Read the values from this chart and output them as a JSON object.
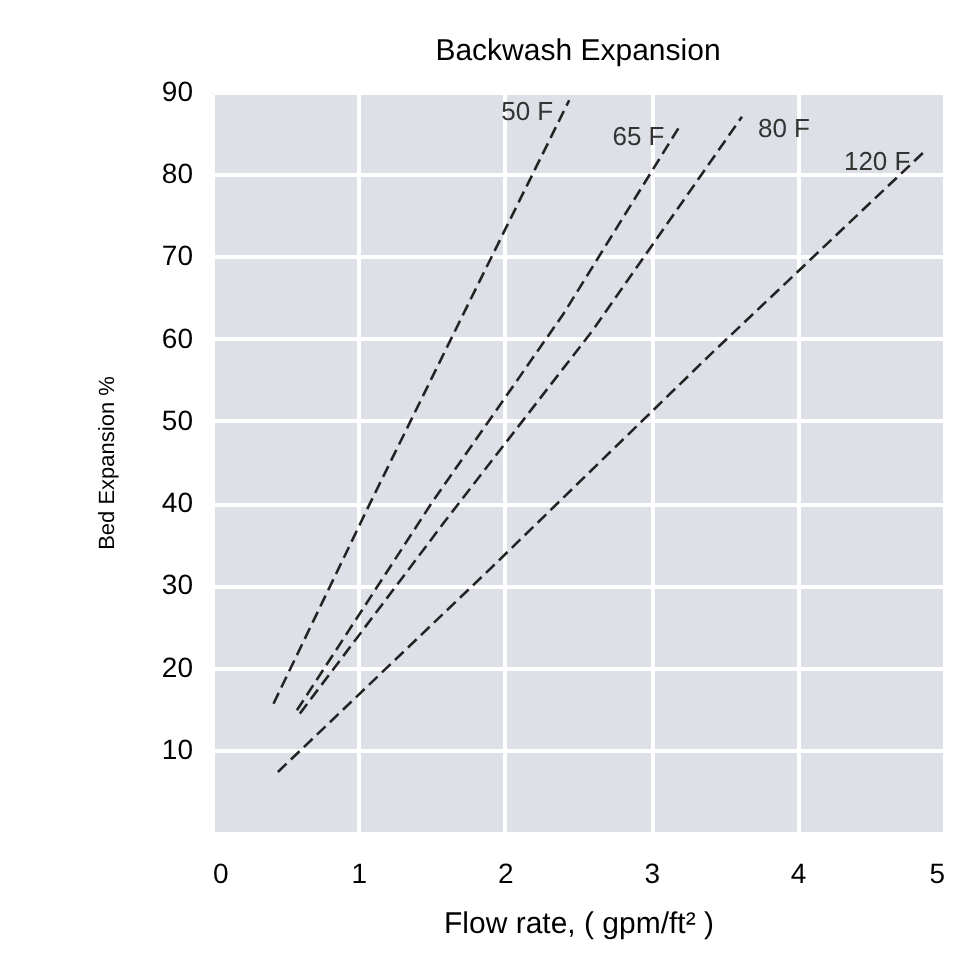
{
  "chart_data": {
    "type": "line",
    "title": "Backwash Expansion",
    "xlabel": "Flow rate, ( gpm/ft² )",
    "ylabel": "Bed Expansion %",
    "xlim": [
      0,
      5
    ],
    "xticks": [
      {
        "value": 0,
        "label": "0"
      },
      {
        "value": 1,
        "label": "1"
      },
      {
        "value": 2,
        "label": "2"
      },
      {
        "value": 3,
        "label": "3"
      },
      {
        "value": 4,
        "label": "4"
      },
      {
        "value": 5,
        "label": "5"
      }
    ],
    "ylim": [
      0,
      90
    ],
    "yticks": [
      10,
      20,
      30,
      40,
      50,
      60,
      70,
      80,
      90
    ],
    "grid": true,
    "legend": false,
    "line_style": "dashed",
    "marker": "none",
    "series": [
      {
        "name": "50 F",
        "color": "#222222",
        "x": [
          0.42,
          1.08,
          1.8,
          2.44
        ],
        "values": [
          15.6,
          40,
          66,
          89
        ]
      },
      {
        "name": "65 F",
        "color": "#222222",
        "x": [
          0.58,
          1.5,
          2.4,
          3.2
        ],
        "values": [
          14.8,
          40,
          63,
          86
        ]
      },
      {
        "name": "80 F",
        "color": "#222222",
        "x": [
          0.6,
          1.6,
          2.6,
          3.62
        ],
        "values": [
          14.4,
          38,
          61,
          87
        ]
      },
      {
        "name": "120 F",
        "color": "#222222",
        "x": [
          0.45,
          1.9,
          3.4,
          4.88
        ],
        "values": [
          7.3,
          32,
          58,
          83
        ]
      }
    ]
  }
}
